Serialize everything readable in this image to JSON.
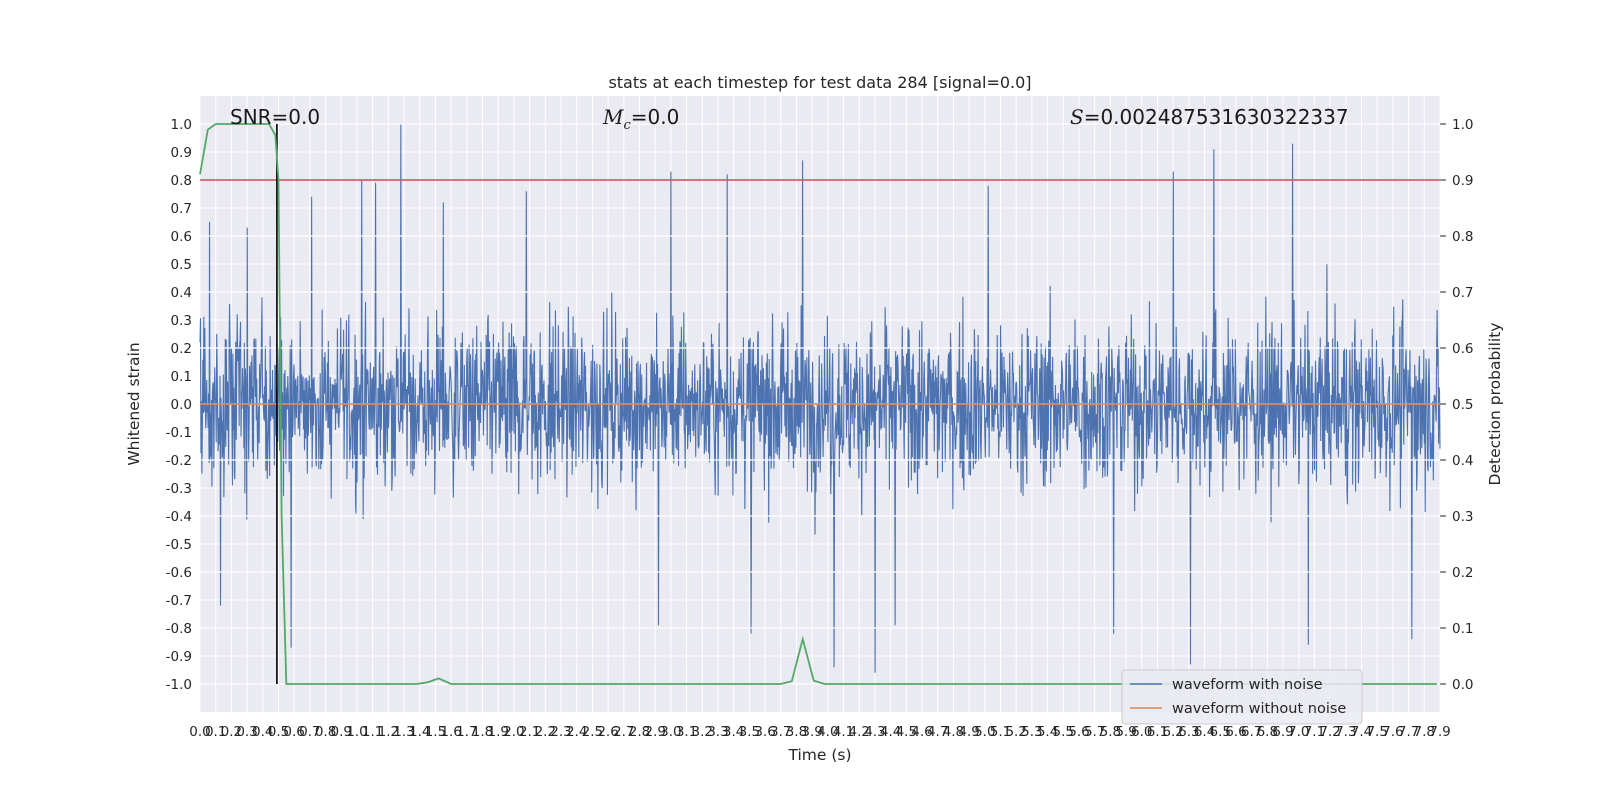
{
  "chart_data": {
    "type": "line",
    "title": "stats at each timestep for test data 284 [signal=0.0]",
    "xlabel": "Time (s)",
    "ylabel_left": "Whitened strain",
    "ylabel_right": "Detection probability",
    "xlim": [
      0.0,
      7.9
    ],
    "ylim_left": [
      -1.1,
      1.1
    ],
    "ylim_right": [
      -0.05,
      1.05
    ],
    "x_ticks": [
      "0.0",
      "0.1",
      "0.2",
      "0.3",
      "0.4",
      "0.5",
      "0.6",
      "0.7",
      "0.8",
      "0.9",
      "1.0",
      "1.1",
      "1.2",
      "1.3",
      "1.4",
      "1.5",
      "1.6",
      "1.7",
      "1.8",
      "1.9",
      "2.0",
      "2.1",
      "2.2",
      "2.3",
      "2.4",
      "2.5",
      "2.6",
      "2.7",
      "2.8",
      "2.9",
      "3.0",
      "3.1",
      "3.2",
      "3.3",
      "3.4",
      "3.5",
      "3.6",
      "3.7",
      "3.8",
      "3.9",
      "4.0",
      "4.1",
      "4.2",
      "4.3",
      "4.4",
      "4.5",
      "4.6",
      "4.7",
      "4.8",
      "4.9",
      "5.0",
      "5.1",
      "5.2",
      "5.3",
      "5.4",
      "5.5",
      "5.6",
      "5.7",
      "5.8",
      "5.9",
      "6.0",
      "6.1",
      "6.2",
      "6.3",
      "6.4",
      "6.5",
      "6.6",
      "6.7",
      "6.8",
      "6.9",
      "7.0",
      "7.1",
      "7.2",
      "7.3",
      "7.4",
      "7.5",
      "7.6",
      "7.7",
      "7.8",
      "7.9"
    ],
    "y_ticks_left": [
      "-1.0",
      "-0.9",
      "-0.8",
      "-0.7",
      "-0.6",
      "-0.5",
      "-0.4",
      "-0.3",
      "-0.2",
      "-0.1",
      "0.0",
      "0.1",
      "0.2",
      "0.3",
      "0.4",
      "0.5",
      "0.6",
      "0.7",
      "0.8",
      "0.9",
      "1.0"
    ],
    "y_ticks_right": [
      "0.0",
      "0.1",
      "0.2",
      "0.3",
      "0.4",
      "0.5",
      "0.6",
      "0.7",
      "0.8",
      "0.9",
      "1.0"
    ],
    "annotations": {
      "snr": "SNR=0.0",
      "mc_symbol": "M",
      "mc_sub": "c",
      "mc_value": "=0.0",
      "s_symbol": "S",
      "s_value": "=0.002487531630322337"
    },
    "threshold": 0.9,
    "marker_time": 0.49,
    "noise_amplitude": 0.45,
    "noise_peaks": [
      {
        "x": 0.06,
        "y": 0.65
      },
      {
        "x": 0.13,
        "y": -0.72
      },
      {
        "x": 0.3,
        "y": 0.63
      },
      {
        "x": 0.58,
        "y": -0.87
      },
      {
        "x": 0.71,
        "y": 0.74
      },
      {
        "x": 1.03,
        "y": 0.8
      },
      {
        "x": 1.12,
        "y": 0.79
      },
      {
        "x": 1.28,
        "y": 1.0
      },
      {
        "x": 1.55,
        "y": 0.72
      },
      {
        "x": 2.08,
        "y": 0.76
      },
      {
        "x": 2.92,
        "y": -0.79
      },
      {
        "x": 3.0,
        "y": 0.83
      },
      {
        "x": 3.36,
        "y": 0.82
      },
      {
        "x": 3.51,
        "y": -0.82
      },
      {
        "x": 3.84,
        "y": 0.87
      },
      {
        "x": 4.04,
        "y": -0.94
      },
      {
        "x": 4.3,
        "y": -0.96
      },
      {
        "x": 4.43,
        "y": -0.79
      },
      {
        "x": 5.02,
        "y": 0.78
      },
      {
        "x": 5.82,
        "y": -0.82
      },
      {
        "x": 6.2,
        "y": 0.83
      },
      {
        "x": 6.31,
        "y": -0.93
      },
      {
        "x": 6.46,
        "y": 0.91
      },
      {
        "x": 6.96,
        "y": 0.93
      },
      {
        "x": 7.06,
        "y": -0.86
      },
      {
        "x": 7.72,
        "y": -0.84
      }
    ],
    "series": [
      {
        "name": "waveform with noise",
        "color": "#4c72b0",
        "kind": "noise"
      },
      {
        "name": "waveform without noise",
        "color": "#dd8452",
        "kind": "flat",
        "value": 0.0
      },
      {
        "color": "#55a868",
        "axis": "right",
        "x": [
          0.0,
          0.05,
          0.1,
          0.2,
          0.3,
          0.38,
          0.44,
          0.48,
          0.5,
          0.52,
          0.55,
          1.0,
          1.2,
          1.38,
          1.45,
          1.52,
          1.6,
          2.5,
          3.5,
          3.7,
          3.77,
          3.84,
          3.91,
          3.98,
          5.0,
          6.0,
          7.0,
          7.88
        ],
        "y": [
          0.91,
          0.99,
          1.0,
          1.0,
          1.0,
          1.0,
          1.0,
          0.98,
          0.9,
          0.3,
          0.0,
          0.0,
          0.0,
          0.0,
          0.003,
          0.01,
          0.0,
          0.0,
          0.0,
          0.0,
          0.005,
          0.08,
          0.006,
          0.0,
          0.0,
          0.0,
          0.0,
          0.0
        ]
      }
    ],
    "threshold_color": "#c44e52",
    "marker_color": "#000000",
    "background": "#eaeaf2",
    "grid": true,
    "legend_position": "lower right"
  }
}
